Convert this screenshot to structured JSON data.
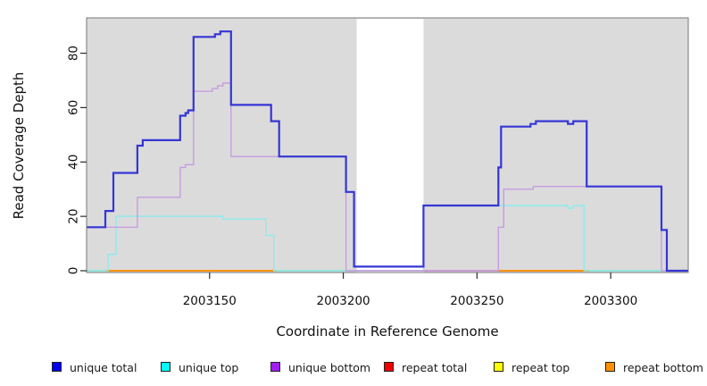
{
  "figure": {
    "y_axis_title": "Read Coverage Depth",
    "x_axis_title": "Coordinate in Reference Genome"
  },
  "chart_data": {
    "type": "line",
    "subtype": "step-after-coverage",
    "title": "",
    "xlabel": "Coordinate in Reference Genome",
    "ylabel": "Read Coverage Depth",
    "x_range": [
      2003104,
      2003329
    ],
    "y_range": [
      0,
      93
    ],
    "x_ticks": [
      2003150,
      2003200,
      2003250,
      2003300
    ],
    "y_ticks": [
      0,
      20,
      40,
      60,
      80
    ],
    "grid": "off",
    "legend_position": "bottom",
    "panel_bg": "#DBDBDB",
    "panel_border": "#777777",
    "tick_color": "#2b2b2b",
    "masked_region": {
      "from": 2003205,
      "to": 2003230,
      "color": "#FFFFFF"
    },
    "series": [
      {
        "name": "repeat total",
        "legend_color": "#EE0000",
        "line_color": "#C85577",
        "line_width": 1.4,
        "segments": [
          [
            [
              2003204,
              0
            ],
            [
              2003257,
              0
            ]
          ]
        ]
      },
      {
        "name": "repeat top",
        "legend_color": "#FFFF00",
        "line_color": "#8AC77E",
        "line_width": 1.4,
        "segments": [
          [
            [
              2003104,
              0
            ],
            [
              2003111,
              0
            ]
          ],
          [
            [
              2003175,
              0
            ],
            [
              2003204,
              0
            ]
          ],
          [
            [
              2003292,
              0
            ],
            [
              2003320,
              0
            ]
          ]
        ]
      },
      {
        "name": "repeat bottom",
        "legend_color": "#FF9100",
        "line_color": "#FF9300",
        "line_width": 2,
        "segments": [
          [
            [
              2003111,
              0
            ],
            [
              2003175,
              0
            ]
          ],
          [
            [
              2003257,
              0
            ],
            [
              2003292,
              0
            ]
          ]
        ]
      },
      {
        "name": "unique top",
        "legend_color": "#00FFFF",
        "line_color": "#8AEDED",
        "line_width": 1.4,
        "segments": [
          [
            [
              2003104,
              0
            ],
            [
              2003112,
              6
            ],
            [
              2003115,
              20
            ],
            [
              2003155,
              19
            ],
            [
              2003171,
              13
            ],
            [
              2003174,
              0
            ],
            [
              2003230,
              24
            ],
            [
              2003284,
              23
            ],
            [
              2003286,
              24
            ],
            [
              2003290,
              0
            ],
            [
              2003329,
              0
            ]
          ]
        ]
      },
      {
        "name": "unique bottom",
        "legend_color": "#A020F0",
        "line_color": "#C69DDF",
        "line_width": 1.4,
        "segments": [
          [
            [
              2003104,
              16
            ],
            [
              2003123,
              27
            ],
            [
              2003139,
              38
            ],
            [
              2003141,
              39
            ],
            [
              2003144,
              66
            ],
            [
              2003151,
              67
            ],
            [
              2003153,
              68
            ],
            [
              2003155,
              69
            ],
            [
              2003158,
              42
            ],
            [
              2003201,
              0
            ],
            [
              2003258,
              16
            ],
            [
              2003260,
              30
            ],
            [
              2003271,
              31
            ],
            [
              2003319,
              0
            ],
            [
              2003329,
              0
            ]
          ]
        ]
      },
      {
        "name": "unique total",
        "legend_color": "#0000EE",
        "line_color": "#3535D6",
        "line_width": 2.2,
        "segments": [
          [
            [
              2003104,
              16
            ],
            [
              2003111,
              22
            ],
            [
              2003114,
              36
            ],
            [
              2003123,
              46
            ],
            [
              2003125,
              48
            ],
            [
              2003139,
              57
            ],
            [
              2003141,
              58
            ],
            [
              2003142,
              59
            ],
            [
              2003144,
              86
            ],
            [
              2003152,
              87
            ],
            [
              2003154,
              88
            ],
            [
              2003158,
              61
            ],
            [
              2003173,
              55
            ],
            [
              2003176,
              42
            ],
            [
              2003201,
              29
            ],
            [
              2003204,
              1.5
            ],
            [
              2003230,
              24
            ],
            [
              2003258,
              38
            ],
            [
              2003259,
              53
            ],
            [
              2003270,
              54
            ],
            [
              2003272,
              55
            ],
            [
              2003284,
              54
            ],
            [
              2003286,
              55
            ],
            [
              2003291,
              31
            ],
            [
              2003319,
              15
            ],
            [
              2003321,
              0
            ],
            [
              2003329,
              0
            ]
          ]
        ]
      }
    ]
  }
}
